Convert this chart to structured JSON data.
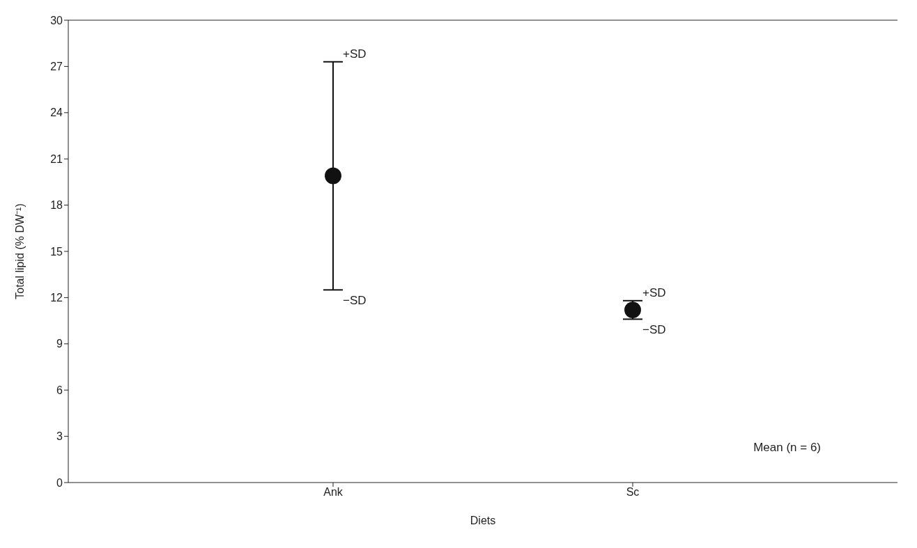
{
  "chart_data": {
    "type": "scatter",
    "xlabel": "Diets",
    "ylabel": "Total lipid (% DW⁻¹)",
    "categories": [
      "Ank",
      "Sc"
    ],
    "series": [
      {
        "color": "#111111",
        "values": [
          19.9,
          11.2
        ],
        "errors": [
          7.4,
          0.6
        ]
      }
    ],
    "ylim": [
      0,
      30
    ],
    "yticks": [
      0,
      3,
      6,
      9,
      12,
      15,
      18,
      21,
      24,
      27,
      30
    ],
    "grid": false,
    "legend": false,
    "marker": "circle",
    "annotations": [
      {
        "text": "+SD",
        "x": "Ank",
        "y": 27.3
      },
      {
        "text": "−SD",
        "x": "Ank",
        "y": 12.5
      },
      {
        "text": "+SD",
        "x": "Sc",
        "y": 11.8
      },
      {
        "text": "−SD",
        "x": "Sc",
        "y": 10.6
      },
      "Mean (n = 6)"
    ]
  }
}
